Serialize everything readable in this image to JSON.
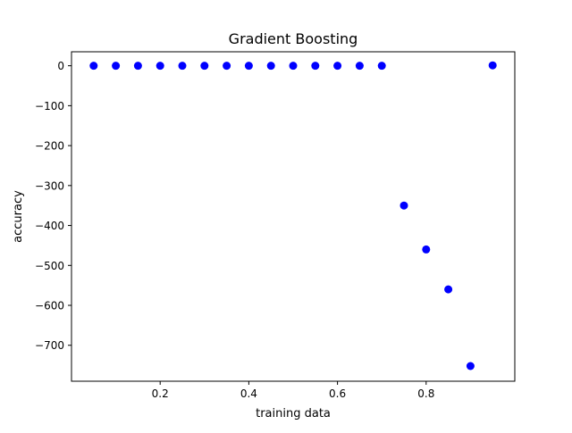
{
  "chart_data": {
    "type": "scatter",
    "title": "Gradient Boosting",
    "xlabel": "training data",
    "ylabel": "accuracy",
    "xlim": [
      0.0,
      1.0
    ],
    "ylim": [
      -790,
      35
    ],
    "xticks": [
      {
        "value": 0.2,
        "label": "0.2"
      },
      {
        "value": 0.4,
        "label": "0.4"
      },
      {
        "value": 0.6,
        "label": "0.6"
      },
      {
        "value": 0.8,
        "label": "0.8"
      }
    ],
    "yticks": [
      {
        "value": 0,
        "label": "0"
      },
      {
        "value": -100,
        "label": "−100"
      },
      {
        "value": -200,
        "label": "−200"
      },
      {
        "value": -300,
        "label": "−300"
      },
      {
        "value": -400,
        "label": "−400"
      },
      {
        "value": -500,
        "label": "−500"
      },
      {
        "value": -600,
        "label": "−600"
      },
      {
        "value": -700,
        "label": "−700"
      }
    ],
    "grid": false,
    "marker_color": "#0000ff",
    "series": [
      {
        "points": [
          {
            "x": 0.05,
            "y": 0
          },
          {
            "x": 0.1,
            "y": 0
          },
          {
            "x": 0.15,
            "y": 0
          },
          {
            "x": 0.2,
            "y": 0
          },
          {
            "x": 0.25,
            "y": 0
          },
          {
            "x": 0.3,
            "y": 0
          },
          {
            "x": 0.35,
            "y": 0
          },
          {
            "x": 0.4,
            "y": 0
          },
          {
            "x": 0.45,
            "y": 0
          },
          {
            "x": 0.5,
            "y": 0
          },
          {
            "x": 0.55,
            "y": 0
          },
          {
            "x": 0.6,
            "y": 0
          },
          {
            "x": 0.65,
            "y": 0
          },
          {
            "x": 0.7,
            "y": 0
          },
          {
            "x": 0.75,
            "y": -350
          },
          {
            "x": 0.8,
            "y": -460
          },
          {
            "x": 0.85,
            "y": -560
          },
          {
            "x": 0.9,
            "y": -752
          },
          {
            "x": 0.95,
            "y": 1
          }
        ]
      }
    ]
  }
}
